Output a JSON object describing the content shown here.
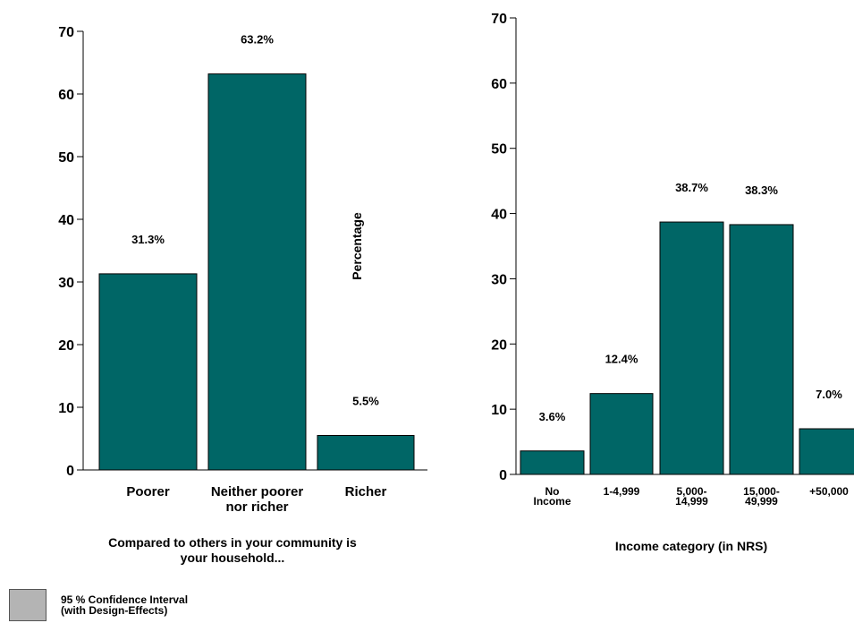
{
  "chart_data": [
    {
      "type": "bar",
      "categories": [
        [
          "Poorer"
        ],
        [
          "Neither poorer",
          "nor richer"
        ],
        [
          "Richer"
        ]
      ],
      "values": [
        31.3,
        63.2,
        5.5
      ],
      "data_labels": [
        "31.3%",
        "63.2%",
        "5.5%"
      ],
      "title": "",
      "xlabel": [
        "Compared to others in your community is",
        "your household..."
      ],
      "ylabel": "Percentage",
      "ylim": [
        0,
        70
      ],
      "yticks": [
        0,
        10,
        20,
        30,
        40,
        50,
        60,
        70
      ],
      "bar_color": "#006666",
      "grid": false
    },
    {
      "type": "bar",
      "categories": [
        [
          "No",
          "Income"
        ],
        [
          "1-4,999"
        ],
        [
          "5,000-",
          "14,999"
        ],
        [
          "15,000-",
          "49,999"
        ],
        [
          "+50,000"
        ]
      ],
      "values": [
        3.6,
        12.4,
        38.7,
        38.3,
        7.0
      ],
      "data_labels": [
        "3.6%",
        "12.4%",
        "38.7%",
        "38.3%",
        "7.0%"
      ],
      "title": "",
      "xlabel": [
        "Income category (in NRS)"
      ],
      "ylim": [
        0,
        70
      ],
      "yticks": [
        0,
        10,
        20,
        30,
        40,
        50,
        60,
        70
      ],
      "bar_color": "#006666",
      "grid": false
    }
  ],
  "legend": {
    "line1": "95 % Confidence Interval",
    "line2": "(with Design-Effects)",
    "swatch_color": "#b4b4b4"
  }
}
